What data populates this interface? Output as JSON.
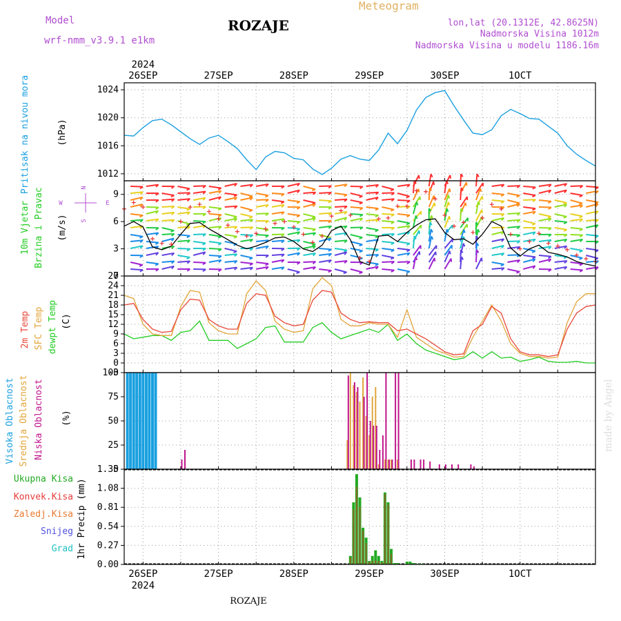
{
  "header": {
    "model_label": "Model",
    "model_name": "wrf-nmm_v3.9.1 e1km",
    "station": "ROZAJE",
    "meteogram": "Meteogram",
    "lonlat": "lon,lat (20.1312E, 42.8625N)",
    "altitude": "Nadmorska Visina 1012m",
    "altitude_model": "Nadmorska Visina u modelu 1186.16m",
    "footer_station": "ROZAJE",
    "credit": "made by Angel"
  },
  "time_axis": {
    "year": "2024",
    "days": [
      "26SEP",
      "27SEP",
      "28SEP",
      "29SEP",
      "30SEP",
      "1OCT"
    ]
  },
  "colors": {
    "pressure": "#1aa0e0",
    "temp2m": "#e8483a",
    "sfc_temp": "#e2a53a",
    "dewpoint": "#22cc22",
    "high_cloud": "#1aa0e0",
    "mid_cloud": "#e2a53a",
    "low_cloud": "#c0148c",
    "total_precip": "#22aa22",
    "conv_precip": "#e83a3a",
    "frozen_precip": "#e87a30",
    "snow": "#5050e0",
    "graupel": "#20c0c0"
  },
  "chart_data": [
    {
      "type": "line",
      "panel": "pressure",
      "labels": [
        "Pritisak na nivou mora",
        "(hPa)"
      ],
      "ylim": [
        1011,
        1025
      ],
      "yticks": [
        1012,
        1016,
        1020,
        1024
      ],
      "x_unit": "hours from 2024-09-26 00:00",
      "xlim": [
        -6,
        144
      ],
      "series": [
        {
          "name": "Pritisak na nivou mora",
          "x": [
            -6,
            -3,
            0,
            3,
            6,
            9,
            12,
            15,
            18,
            21,
            24,
            27,
            30,
            33,
            36,
            39,
            42,
            45,
            48,
            51,
            54,
            57,
            60,
            63,
            66,
            69,
            72,
            75,
            78,
            81,
            84,
            87,
            90,
            93,
            96,
            99,
            102,
            105,
            108,
            111,
            114,
            117,
            120,
            123,
            126,
            129,
            132,
            135,
            138,
            141,
            144
          ],
          "y": [
            1017.5,
            1017.4,
            1018.6,
            1019.6,
            1019.8,
            1019.0,
            1018.0,
            1017.0,
            1016.2,
            1017.1,
            1017.5,
            1016.6,
            1015.6,
            1014.0,
            1012.6,
            1014.4,
            1015.2,
            1015.0,
            1014.2,
            1014.0,
            1012.7,
            1011.9,
            1012.8,
            1014.1,
            1014.6,
            1014.1,
            1013.9,
            1015.4,
            1017.8,
            1016.3,
            1018.2,
            1021.1,
            1022.9,
            1023.6,
            1023.9,
            1021.7,
            1019.7,
            1017.8,
            1017.6,
            1018.3,
            1020.3,
            1021.2,
            1020.6,
            1019.9,
            1019.8,
            1018.8,
            1017.8,
            1016.0,
            1014.8,
            1013.9,
            1013.1
          ]
        }
      ]
    },
    {
      "type": "line",
      "panel": "wind",
      "labels": [
        "10m Vjetar",
        "Brzina i Pravac",
        "(m/s)"
      ],
      "compass": {
        "n": "N",
        "s": "S",
        "w": "W",
        "e": "E"
      },
      "ylim": [
        0,
        10.5
      ],
      "yticks": [
        0,
        3,
        6,
        9
      ],
      "xlim": [
        -6,
        144
      ],
      "series": [
        {
          "name": "Brzina",
          "x": [
            -6,
            -3,
            0,
            3,
            6,
            9,
            12,
            15,
            18,
            21,
            24,
            27,
            30,
            33,
            36,
            39,
            42,
            45,
            48,
            51,
            54,
            57,
            60,
            63,
            66,
            69,
            72,
            75,
            78,
            81,
            84,
            87,
            90,
            93,
            96,
            99,
            102,
            105,
            108,
            111,
            114,
            117,
            120,
            123,
            126,
            129,
            132,
            135,
            138,
            141,
            144
          ],
          "y": [
            5.5,
            6.0,
            5.4,
            3.2,
            2.9,
            3.3,
            4.6,
            5.8,
            5.9,
            5.2,
            4.6,
            4.0,
            3.4,
            3.0,
            3.3,
            3.7,
            4.2,
            4.3,
            3.8,
            3.0,
            2.7,
            3.4,
            5.0,
            5.5,
            4.0,
            1.6,
            1.2,
            4.4,
            4.5,
            3.8,
            4.8,
            5.6,
            6.2,
            6.3,
            4.8,
            4.0,
            4.1,
            3.5,
            4.6,
            6.0,
            5.5,
            3.1,
            2.2,
            3.0,
            3.4,
            2.6,
            2.4,
            2.1,
            1.6,
            1.3,
            1.1
          ]
        },
        {
          "name": "Udari",
          "x": [
            -6,
            -3,
            0,
            3,
            6,
            9,
            12,
            15,
            18,
            21,
            24,
            27,
            30,
            33,
            36,
            39,
            42,
            45,
            48,
            51,
            54,
            57,
            60,
            63,
            66,
            69,
            72,
            75,
            78,
            81,
            84,
            87,
            90,
            93,
            96,
            99,
            102,
            105,
            108,
            111,
            114,
            117,
            120,
            123,
            126,
            129,
            132,
            135,
            138,
            141,
            144
          ],
          "y": [
            7.4,
            8.1,
            7.6,
            4.1,
            3.6,
            3.5,
            6.0,
            7.6,
            7.9,
            7.1,
            6.3,
            5.6,
            4.9,
            4.4,
            4.7,
            5.2,
            5.8,
            6.0,
            5.4,
            4.6,
            3.7,
            4.4,
            6.6,
            7.2,
            6.7,
            2.0,
            1.6,
            6.3,
            6.4,
            7.7,
            7.7,
            9.4,
            9.3,
            8.5,
            6.7,
            5.5,
            5.9,
            4.8,
            6.4,
            7.9,
            7.4,
            4.6,
            3.0,
            3.8,
            4.7,
            3.6,
            3.3,
            2.9,
            2.3,
            1.9,
            1.6
          ]
        }
      ]
    },
    {
      "type": "line",
      "panel": "temperature",
      "labels": [
        "2m Temp",
        "SFC Temp",
        "dewpt Temp",
        "(C)"
      ],
      "ylim": [
        -3,
        27
      ],
      "yticks": [
        -3,
        0,
        3,
        6,
        9,
        12,
        15,
        18,
        21,
        24,
        27
      ],
      "xlim": [
        -6,
        144
      ],
      "series": [
        {
          "name": "2m Temp",
          "x": [
            -6,
            -3,
            0,
            3,
            6,
            9,
            12,
            15,
            18,
            21,
            24,
            27,
            30,
            33,
            36,
            39,
            42,
            45,
            48,
            51,
            54,
            57,
            60,
            63,
            66,
            69,
            72,
            75,
            78,
            81,
            84,
            87,
            90,
            93,
            96,
            99,
            102,
            105,
            108,
            111,
            114,
            117,
            120,
            123,
            126,
            129,
            132,
            135,
            138,
            141,
            144
          ],
          "y": [
            18,
            18.5,
            13.5,
            10.5,
            9.5,
            9.8,
            16.5,
            19.8,
            19.5,
            13.5,
            11.5,
            10.5,
            10.5,
            18.5,
            21.5,
            21.0,
            14.5,
            12.5,
            11.5,
            12.0,
            19.5,
            22.5,
            22.0,
            15.5,
            13.5,
            12.5,
            12.8,
            12.5,
            12.5,
            10.0,
            10.5,
            9.0,
            7.5,
            5.5,
            3.5,
            2.5,
            2.8,
            10.0,
            12.0,
            17.5,
            15.5,
            7.5,
            3.5,
            2.5,
            2.5,
            2.0,
            2.5,
            10.5,
            15.5,
            17.5,
            18.0
          ]
        },
        {
          "name": "SFC Temp",
          "x": [
            -6,
            -3,
            0,
            3,
            6,
            9,
            12,
            15,
            18,
            21,
            24,
            27,
            30,
            33,
            36,
            39,
            42,
            45,
            48,
            51,
            54,
            57,
            60,
            63,
            66,
            69,
            72,
            75,
            78,
            81,
            84,
            87,
            90,
            93,
            96,
            99,
            102,
            105,
            108,
            111,
            114,
            117,
            120,
            123,
            126,
            129,
            132,
            135,
            138,
            141,
            144
          ],
          "y": [
            21,
            20,
            12,
            9,
            8.5,
            8.5,
            17.5,
            22.5,
            22.0,
            12.5,
            10,
            9,
            9,
            21.5,
            25.5,
            22.5,
            13,
            10.5,
            9.5,
            10,
            23,
            26.5,
            24.0,
            13.5,
            11.5,
            11.5,
            12.5,
            12.0,
            12.0,
            8,
            16.5,
            8,
            6,
            4,
            3,
            1.8,
            2.0,
            8,
            13,
            18,
            13,
            6,
            3,
            2,
            2.0,
            1.5,
            1.8,
            12.5,
            19.0,
            21.5,
            21.5
          ]
        },
        {
          "name": "dewpt Temp",
          "x": [
            -6,
            -3,
            0,
            3,
            6,
            9,
            12,
            15,
            18,
            21,
            24,
            27,
            30,
            33,
            36,
            39,
            42,
            45,
            48,
            51,
            54,
            57,
            60,
            63,
            66,
            69,
            72,
            75,
            78,
            81,
            84,
            87,
            90,
            93,
            96,
            99,
            102,
            105,
            108,
            111,
            114,
            117,
            120,
            123,
            126,
            129,
            132,
            135,
            138,
            141,
            144
          ],
          "y": [
            9,
            7.5,
            8,
            8.5,
            8.5,
            7,
            9.5,
            10,
            13,
            7,
            7,
            7,
            4.5,
            6,
            7.5,
            11,
            11.5,
            6.5,
            6.5,
            6.5,
            11,
            12.5,
            9.5,
            7.5,
            8.5,
            9.5,
            10.5,
            9.5,
            12,
            7,
            9,
            6,
            4,
            3,
            2,
            1.0,
            1.5,
            3.5,
            1.5,
            3.5,
            1.5,
            1.8,
            0.5,
            1.0,
            1.8,
            0.5,
            0.2,
            0.2,
            0.5,
            0.0,
            0.0
          ]
        }
      ]
    },
    {
      "type": "bar",
      "panel": "cloud",
      "labels": [
        "Visoka Oblacnost",
        "Srednja Oblacnost",
        "Niska Oblacnost",
        "(%)"
      ],
      "ylim": [
        0,
        100
      ],
      "yticks": [
        0,
        25,
        50,
        75,
        100
      ],
      "xlim": [
        -6,
        144
      ],
      "series": [
        {
          "name": "Visoka Oblacnost",
          "x": [
            -5,
            -4,
            -3,
            -2,
            -1,
            0,
            1,
            2,
            3,
            4
          ],
          "values": [
            100,
            100,
            100,
            100,
            100,
            100,
            100,
            100,
            100,
            100
          ]
        },
        {
          "name": "Srednja Oblacnost",
          "x": [
            65,
            66,
            67,
            68,
            69,
            70,
            71,
            72,
            73,
            74,
            75,
            77,
            78,
            79,
            81
          ],
          "values": [
            30,
            100,
            87,
            80,
            70,
            95,
            55,
            35,
            75,
            85,
            5,
            10,
            10,
            10,
            10
          ]
        },
        {
          "name": "Niska Oblacnost",
          "x": [
            12,
            13,
            65,
            67,
            68,
            70,
            71,
            72,
            73,
            74,
            75,
            76,
            77,
            78,
            79,
            80,
            81,
            85,
            86,
            88,
            89,
            91,
            94,
            96,
            98,
            100,
            104,
            105
          ],
          "values": [
            10,
            20,
            97,
            90,
            85,
            75,
            100,
            50,
            45,
            45,
            20,
            35,
            100,
            10,
            10,
            100,
            100,
            10,
            10,
            10,
            10,
            8,
            5,
            5,
            5,
            5,
            5,
            3
          ]
        }
      ]
    },
    {
      "type": "bar",
      "panel": "precip",
      "labels": [
        "Ukupna Kisa",
        "Konvek.Kisa",
        "Zaledj.Kisa",
        "Snijeg",
        "Grad",
        "1hr Precip (mm)"
      ],
      "ylim": [
        0,
        1.35
      ],
      "yticks": [
        0,
        0.27,
        0.54,
        0.81,
        1.08,
        1.35
      ],
      "xlim": [
        -6,
        144
      ],
      "series": [
        {
          "name": "Ukupna Kisa",
          "x": [
            66,
            67,
            68,
            69,
            70,
            71,
            72,
            73,
            74,
            75,
            76,
            77,
            78,
            79,
            80,
            81,
            82,
            83,
            84,
            85,
            86,
            87,
            88,
            89
          ],
          "values": [
            0.12,
            0.88,
            1.28,
            0.95,
            0.52,
            0.38,
            0.05,
            0.12,
            0.2,
            0.12,
            0.05,
            1.02,
            0.88,
            0.22,
            0.02,
            0.02,
            0,
            0,
            0.04,
            0.04,
            0.02,
            0.01,
            0.01,
            0.01
          ]
        },
        {
          "name": "Konvek.Kisa",
          "x": [
            66,
            67,
            68,
            69,
            70,
            71,
            72,
            73,
            74,
            75,
            76,
            77,
            78,
            79
          ],
          "values": [
            0.1,
            0.78,
            1.1,
            0.82,
            0.48,
            0.3,
            0.04,
            0.05,
            0.06,
            0.05,
            0.03,
            1.0,
            0.85,
            0.15
          ]
        }
      ]
    }
  ]
}
